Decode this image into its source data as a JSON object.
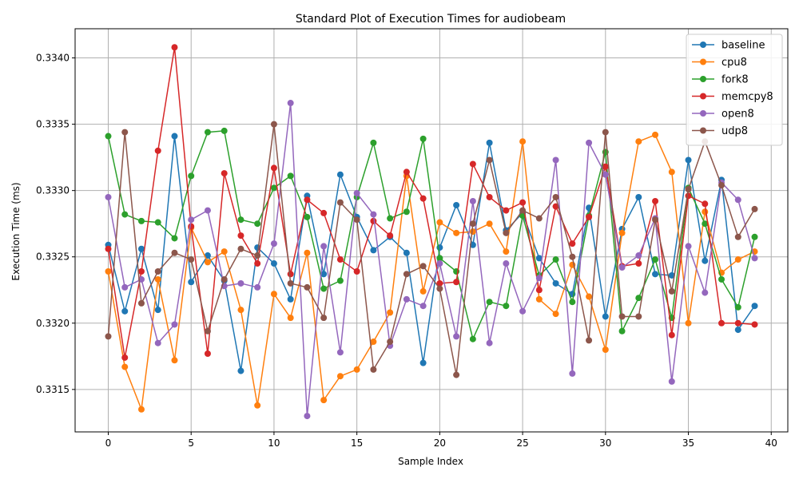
{
  "chart_data": {
    "type": "line",
    "title": "Standard Plot of Execution Times for audiobeam",
    "xlabel": "Sample Index",
    "ylabel": "Execution Time (ms)",
    "xlim": [
      -2,
      41
    ],
    "ylim": [
      0.33118,
      0.33422
    ],
    "x_ticks": [
      0,
      5,
      10,
      15,
      20,
      25,
      30,
      35,
      40
    ],
    "y_ticks": [
      0.3315,
      0.332,
      0.3325,
      0.333,
      0.3335,
      0.334
    ],
    "y_tick_labels": [
      "0.3315",
      "0.3320",
      "0.3325",
      "0.3330",
      "0.3335",
      "0.3340"
    ],
    "grid": true,
    "legend_position": "top-right",
    "markers": true,
    "x": [
      0,
      1,
      2,
      3,
      4,
      5,
      6,
      7,
      8,
      9,
      10,
      11,
      12,
      13,
      14,
      15,
      16,
      17,
      18,
      19,
      20,
      21,
      22,
      23,
      24,
      25,
      26,
      27,
      28,
      29,
      30,
      31,
      32,
      33,
      34,
      35,
      36,
      37,
      38,
      39
    ],
    "series": [
      {
        "name": "baseline",
        "color": "#1f77b4",
        "values": [
          0.33259,
          0.33209,
          0.33256,
          0.3321,
          0.33341,
          0.33231,
          0.33251,
          0.33232,
          0.33164,
          0.33257,
          0.33245,
          0.33218,
          0.33296,
          0.33237,
          0.33312,
          0.3328,
          0.33255,
          0.33265,
          0.33253,
          0.3317,
          0.33257,
          0.33289,
          0.33259,
          0.33336,
          0.3327,
          0.33283,
          0.33249,
          0.3323,
          0.33222,
          0.33287,
          0.33205,
          0.33271,
          0.33295,
          0.33237,
          0.33236,
          0.33323,
          0.33247,
          0.33308,
          0.33195,
          0.33213
        ]
      },
      {
        "name": "cpu8",
        "color": "#ff7f0e",
        "values": [
          0.33239,
          0.33167,
          0.33135,
          0.33233,
          0.33172,
          0.33272,
          0.33246,
          0.33254,
          0.3321,
          0.33138,
          0.33222,
          0.33204,
          0.33253,
          0.33142,
          0.3316,
          0.33165,
          0.33186,
          0.33208,
          0.33311,
          0.33224,
          0.33276,
          0.33268,
          0.33269,
          0.33275,
          0.33254,
          0.33337,
          0.33218,
          0.33207,
          0.33244,
          0.3322,
          0.3318,
          0.33268,
          0.33337,
          0.33342,
          0.33314,
          0.332,
          0.33284,
          0.33238,
          0.33248,
          0.33254
        ]
      },
      {
        "name": "fork8",
        "color": "#2ca02c",
        "values": [
          0.33341,
          0.33282,
          0.33277,
          0.33276,
          0.33264,
          0.33311,
          0.33344,
          0.33345,
          0.33278,
          0.33275,
          0.33302,
          0.33311,
          0.3328,
          0.33226,
          0.33232,
          0.33295,
          0.33336,
          0.33279,
          0.33284,
          0.33339,
          0.33249,
          0.33239,
          0.33188,
          0.33216,
          0.33213,
          0.33281,
          0.33236,
          0.33248,
          0.33216,
          0.33281,
          0.33329,
          0.33194,
          0.33219,
          0.33248,
          0.33204,
          0.33302,
          0.33275,
          0.33233,
          0.33212,
          0.33265
        ]
      },
      {
        "name": "memcpy8",
        "color": "#d62728",
        "values": [
          0.33256,
          0.33174,
          0.33239,
          0.3333,
          0.33408,
          0.33273,
          0.33177,
          0.33313,
          0.33266,
          0.33245,
          0.33317,
          0.33237,
          0.33293,
          0.33283,
          0.33248,
          0.33239,
          0.33277,
          0.33266,
          0.33314,
          0.33294,
          0.3323,
          0.33231,
          0.3332,
          0.33295,
          0.33285,
          0.33291,
          0.33225,
          0.33288,
          0.3326,
          0.3328,
          0.33318,
          0.33243,
          0.33245,
          0.33292,
          0.33191,
          0.33296,
          0.3329,
          0.332,
          0.332,
          0.33199
        ]
      },
      {
        "name": "open8",
        "color": "#9467bd",
        "values": [
          0.33295,
          0.33227,
          0.33233,
          0.33185,
          0.33199,
          0.33278,
          0.33285,
          0.33228,
          0.3323,
          0.33227,
          0.3326,
          0.33366,
          0.3313,
          0.33258,
          0.33178,
          0.33298,
          0.33282,
          0.33183,
          0.33218,
          0.33213,
          0.33245,
          0.3319,
          0.33292,
          0.33185,
          0.33245,
          0.33209,
          0.33234,
          0.33323,
          0.33162,
          0.33336,
          0.33312,
          0.33242,
          0.33251,
          0.33279,
          0.33156,
          0.33258,
          0.33223,
          0.33306,
          0.33293,
          0.33249
        ]
      },
      {
        "name": "udp8",
        "color": "#8c564b",
        "values": [
          0.3319,
          0.33344,
          0.33215,
          0.33239,
          0.33253,
          0.33248,
          0.33194,
          0.33233,
          0.33256,
          0.33251,
          0.3335,
          0.3323,
          0.33227,
          0.33204,
          0.33291,
          0.33278,
          0.33165,
          0.33186,
          0.33237,
          0.33243,
          0.33226,
          0.33161,
          0.33275,
          0.33323,
          0.33268,
          0.33285,
          0.33279,
          0.33295,
          0.3325,
          0.33187,
          0.33344,
          0.33205,
          0.33205,
          0.33278,
          0.33224,
          0.33301,
          0.33337,
          0.33304,
          0.33265,
          0.33286
        ]
      }
    ]
  }
}
